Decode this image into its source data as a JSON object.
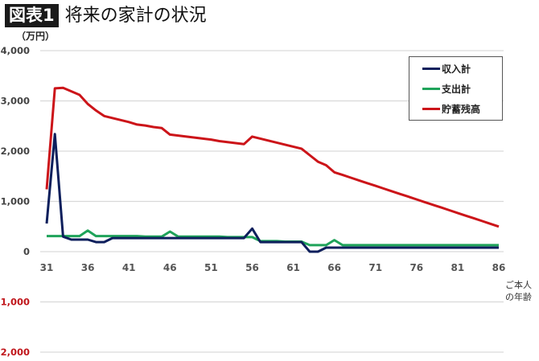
{
  "header": {
    "badge": "図表1",
    "title": "将来の家計の状況"
  },
  "chart_data": {
    "type": "line",
    "title": "将来の家計の状況",
    "ylabel": "（万円）",
    "xlabel": "ご本人の年齢",
    "xlabel_lines": [
      "ご本人",
      "の年齢"
    ],
    "ylim": [
      -2000,
      4000
    ],
    "yticks": [
      4000,
      3000,
      2000,
      1000,
      0,
      -1000,
      -2000
    ],
    "ytick_labels": [
      "4,000",
      "3,000",
      "2,000",
      "1,000",
      "0",
      "-1,000",
      "-2,000"
    ],
    "xticks": [
      31,
      36,
      41,
      46,
      51,
      56,
      61,
      66,
      71,
      76,
      81,
      86
    ],
    "grid": true,
    "legend_position": "top-right",
    "x": [
      31,
      32,
      33,
      34,
      35,
      36,
      37,
      38,
      39,
      40,
      41,
      42,
      43,
      44,
      45,
      46,
      47,
      48,
      49,
      50,
      51,
      52,
      53,
      54,
      55,
      56,
      57,
      58,
      59,
      60,
      61,
      62,
      63,
      64,
      65,
      66,
      67,
      68,
      69,
      70,
      71,
      72,
      73,
      74,
      75,
      76,
      77,
      78,
      79,
      80,
      81,
      82,
      83,
      84,
      85,
      86
    ],
    "series": [
      {
        "name": "収入計",
        "color": "#0d1f5c",
        "values": [
          560,
          2340,
          300,
          240,
          240,
          240,
          190,
          190,
          270,
          270,
          270,
          270,
          270,
          270,
          270,
          270,
          270,
          270,
          270,
          270,
          270,
          270,
          270,
          270,
          270,
          460,
          190,
          190,
          190,
          190,
          190,
          190,
          0,
          0,
          80,
          80,
          80,
          80,
          80,
          80,
          80,
          80,
          80,
          80,
          80,
          80,
          80,
          80,
          80,
          80,
          80,
          80,
          80,
          80,
          80,
          80
        ]
      },
      {
        "name": "支出計",
        "color": "#1fa35a",
        "values": [
          310,
          310,
          310,
          310,
          310,
          420,
          310,
          310,
          310,
          310,
          310,
          310,
          300,
          300,
          300,
          400,
          300,
          300,
          300,
          300,
          300,
          300,
          290,
          290,
          290,
          290,
          210,
          210,
          210,
          200,
          200,
          200,
          130,
          130,
          130,
          230,
          130,
          130,
          130,
          130,
          130,
          130,
          130,
          130,
          130,
          130,
          130,
          130,
          130,
          130,
          130,
          130,
          130,
          130,
          130,
          130
        ]
      },
      {
        "name": "貯蓄残高",
        "color": "#cc1419",
        "values": [
          1240,
          3250,
          3260,
          3190,
          3120,
          2940,
          2810,
          2700,
          2660,
          2620,
          2580,
          2530,
          2510,
          2480,
          2460,
          2330,
          2310,
          2290,
          2270,
          2250,
          2230,
          2200,
          2180,
          2160,
          2140,
          2290,
          2250,
          2210,
          2170,
          2130,
          2090,
          2050,
          1920,
          1790,
          1720,
          1580,
          1526,
          1472,
          1418,
          1364,
          1310,
          1256,
          1202,
          1148,
          1094,
          1040,
          986,
          932,
          878,
          824,
          770,
          716,
          662,
          608,
          554,
          500
        ]
      }
    ]
  }
}
